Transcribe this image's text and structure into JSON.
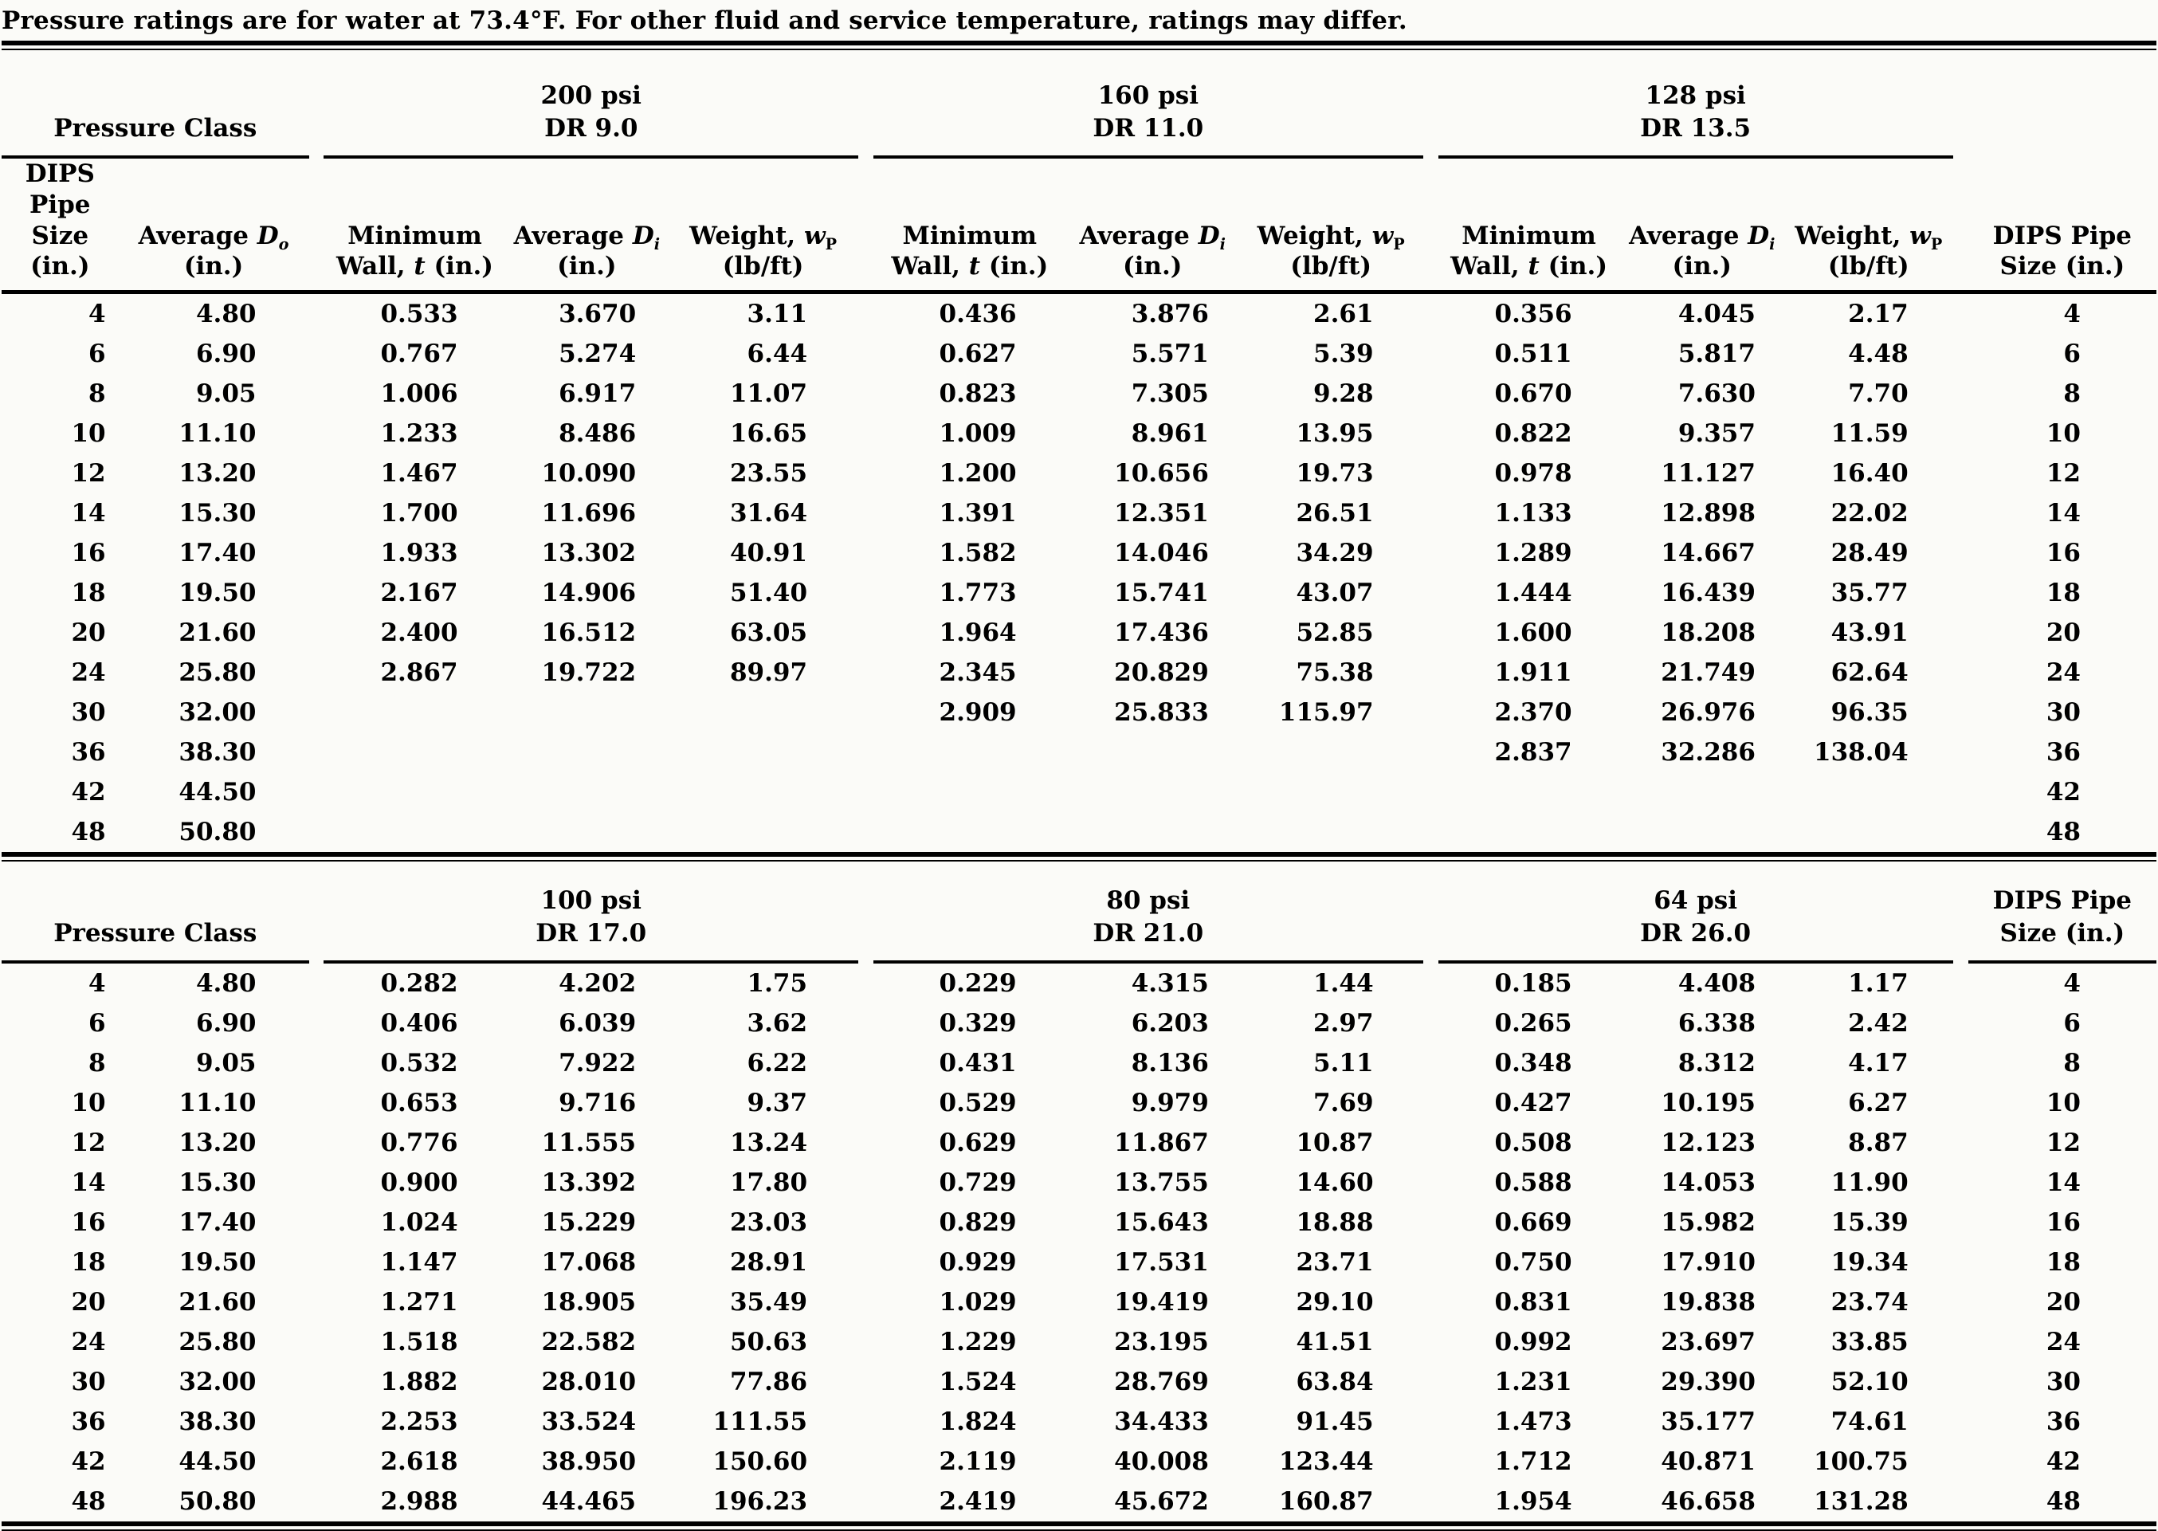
{
  "title": "Pressure ratings are for water at 73.4°F. For other fluid and service temperature, ratings may differ.",
  "header": {
    "pressure_class": "Pressure Class",
    "size_l1": "DIPS Pipe",
    "size_l2": "Size (in.)",
    "avg_do": {
      "pre": "Average ",
      "v": "D",
      "sub": "o",
      "unit": "(in.)"
    },
    "min_wall": {
      "l1": "Minimum",
      "pre": "Wall, ",
      "v": "t",
      "post": " (in.)"
    },
    "avg_di": {
      "pre": "Average ",
      "v": "D",
      "sub": "i",
      "unit": "(in.)"
    },
    "weight": {
      "pre": "Weight, ",
      "v": "w",
      "sub": "P",
      "unit": "(lb/ft)"
    }
  },
  "sections": [
    {
      "groups": [
        {
          "psi": "200 psi",
          "dr": "DR 9.0"
        },
        {
          "psi": "160 psi",
          "dr": "DR 11.0"
        },
        {
          "psi": "128 psi",
          "dr": "DR 13.5"
        }
      ],
      "rows": [
        [
          "4",
          "4.80",
          "0.533",
          "3.670",
          "3.11",
          "0.436",
          "3.876",
          "2.61",
          "0.356",
          "4.045",
          "2.17",
          "4"
        ],
        [
          "6",
          "6.90",
          "0.767",
          "5.274",
          "6.44",
          "0.627",
          "5.571",
          "5.39",
          "0.511",
          "5.817",
          "4.48",
          "6"
        ],
        [
          "8",
          "9.05",
          "1.006",
          "6.917",
          "11.07",
          "0.823",
          "7.305",
          "9.28",
          "0.670",
          "7.630",
          "7.70",
          "8"
        ],
        [
          "10",
          "11.10",
          "1.233",
          "8.486",
          "16.65",
          "1.009",
          "8.961",
          "13.95",
          "0.822",
          "9.357",
          "11.59",
          "10"
        ],
        [
          "12",
          "13.20",
          "1.467",
          "10.090",
          "23.55",
          "1.200",
          "10.656",
          "19.73",
          "0.978",
          "11.127",
          "16.40",
          "12"
        ],
        [
          "14",
          "15.30",
          "1.700",
          "11.696",
          "31.64",
          "1.391",
          "12.351",
          "26.51",
          "1.133",
          "12.898",
          "22.02",
          "14"
        ],
        [
          "16",
          "17.40",
          "1.933",
          "13.302",
          "40.91",
          "1.582",
          "14.046",
          "34.29",
          "1.289",
          "14.667",
          "28.49",
          "16"
        ],
        [
          "18",
          "19.50",
          "2.167",
          "14.906",
          "51.40",
          "1.773",
          "15.741",
          "43.07",
          "1.444",
          "16.439",
          "35.77",
          "18"
        ],
        [
          "20",
          "21.60",
          "2.400",
          "16.512",
          "63.05",
          "1.964",
          "17.436",
          "52.85",
          "1.600",
          "18.208",
          "43.91",
          "20"
        ],
        [
          "24",
          "25.80",
          "2.867",
          "19.722",
          "89.97",
          "2.345",
          "20.829",
          "75.38",
          "1.911",
          "21.749",
          "62.64",
          "24"
        ],
        [
          "30",
          "32.00",
          "",
          "",
          "",
          "2.909",
          "25.833",
          "115.97",
          "2.370",
          "26.976",
          "96.35",
          "30"
        ],
        [
          "36",
          "38.30",
          "",
          "",
          "",
          "",
          "",
          "",
          "2.837",
          "32.286",
          "138.04",
          "36"
        ],
        [
          "42",
          "44.50",
          "",
          "",
          "",
          "",
          "",
          "",
          "",
          "",
          "",
          "42"
        ],
        [
          "48",
          "50.80",
          "",
          "",
          "",
          "",
          "",
          "",
          "",
          "",
          "",
          "48"
        ]
      ]
    },
    {
      "groups": [
        {
          "psi": "100 psi",
          "dr": "DR 17.0"
        },
        {
          "psi": "80 psi",
          "dr": "DR 21.0"
        },
        {
          "psi": "64 psi",
          "dr": "DR 26.0"
        }
      ],
      "rows": [
        [
          "4",
          "4.80",
          "0.282",
          "4.202",
          "1.75",
          "0.229",
          "4.315",
          "1.44",
          "0.185",
          "4.408",
          "1.17",
          "4"
        ],
        [
          "6",
          "6.90",
          "0.406",
          "6.039",
          "3.62",
          "0.329",
          "6.203",
          "2.97",
          "0.265",
          "6.338",
          "2.42",
          "6"
        ],
        [
          "8",
          "9.05",
          "0.532",
          "7.922",
          "6.22",
          "0.431",
          "8.136",
          "5.11",
          "0.348",
          "8.312",
          "4.17",
          "8"
        ],
        [
          "10",
          "11.10",
          "0.653",
          "9.716",
          "9.37",
          "0.529",
          "9.979",
          "7.69",
          "0.427",
          "10.195",
          "6.27",
          "10"
        ],
        [
          "12",
          "13.20",
          "0.776",
          "11.555",
          "13.24",
          "0.629",
          "11.867",
          "10.87",
          "0.508",
          "12.123",
          "8.87",
          "12"
        ],
        [
          "14",
          "15.30",
          "0.900",
          "13.392",
          "17.80",
          "0.729",
          "13.755",
          "14.60",
          "0.588",
          "14.053",
          "11.90",
          "14"
        ],
        [
          "16",
          "17.40",
          "1.024",
          "15.229",
          "23.03",
          "0.829",
          "15.643",
          "18.88",
          "0.669",
          "15.982",
          "15.39",
          "16"
        ],
        [
          "18",
          "19.50",
          "1.147",
          "17.068",
          "28.91",
          "0.929",
          "17.531",
          "23.71",
          "0.750",
          "17.910",
          "19.34",
          "18"
        ],
        [
          "20",
          "21.60",
          "1.271",
          "18.905",
          "35.49",
          "1.029",
          "19.419",
          "29.10",
          "0.831",
          "19.838",
          "23.74",
          "20"
        ],
        [
          "24",
          "25.80",
          "1.518",
          "22.582",
          "50.63",
          "1.229",
          "23.195",
          "41.51",
          "0.992",
          "23.697",
          "33.85",
          "24"
        ],
        [
          "30",
          "32.00",
          "1.882",
          "28.010",
          "77.86",
          "1.524",
          "28.769",
          "63.84",
          "1.231",
          "29.390",
          "52.10",
          "30"
        ],
        [
          "36",
          "38.30",
          "2.253",
          "33.524",
          "111.55",
          "1.824",
          "34.433",
          "91.45",
          "1.473",
          "35.177",
          "74.61",
          "36"
        ],
        [
          "42",
          "44.50",
          "2.618",
          "38.950",
          "150.60",
          "2.119",
          "40.008",
          "123.44",
          "1.712",
          "40.871",
          "100.75",
          "42"
        ],
        [
          "48",
          "50.80",
          "2.988",
          "44.465",
          "196.23",
          "2.419",
          "45.672",
          "160.87",
          "1.954",
          "46.658",
          "131.28",
          "48"
        ]
      ]
    }
  ]
}
